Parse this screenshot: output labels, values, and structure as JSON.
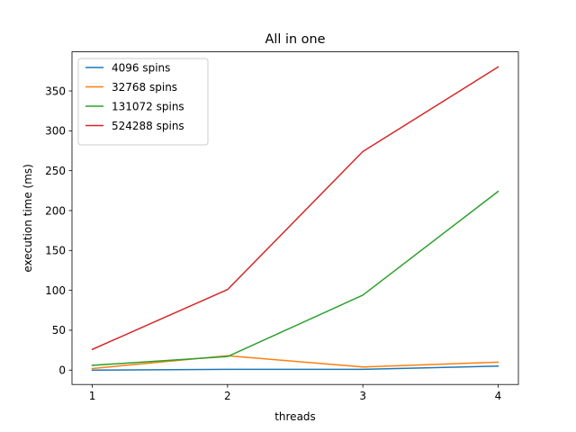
{
  "chart_data": {
    "type": "line",
    "title": "All in one",
    "xlabel": "threads",
    "ylabel": "execution time (ms)",
    "x": [
      1,
      2,
      3,
      4
    ],
    "xticks": [
      1,
      2,
      3,
      4
    ],
    "yticks": [
      0,
      50,
      100,
      150,
      200,
      250,
      300,
      350
    ],
    "xlim": [
      0.85,
      4.15
    ],
    "ylim": [
      -18,
      399
    ],
    "grid": false,
    "legend_position": "top-left",
    "series": [
      {
        "name": "4096 spins",
        "color": "#1f77b4",
        "values": [
          0,
          1,
          1,
          5
        ]
      },
      {
        "name": "32768 spins",
        "color": "#ff7f0e",
        "values": [
          2,
          18,
          4,
          10
        ]
      },
      {
        "name": "131072 spins",
        "color": "#2ca02c",
        "values": [
          6,
          17,
          94,
          224
        ]
      },
      {
        "name": "524288 spins",
        "color": "#d62728",
        "values": [
          26,
          101,
          274,
          380
        ]
      }
    ]
  }
}
